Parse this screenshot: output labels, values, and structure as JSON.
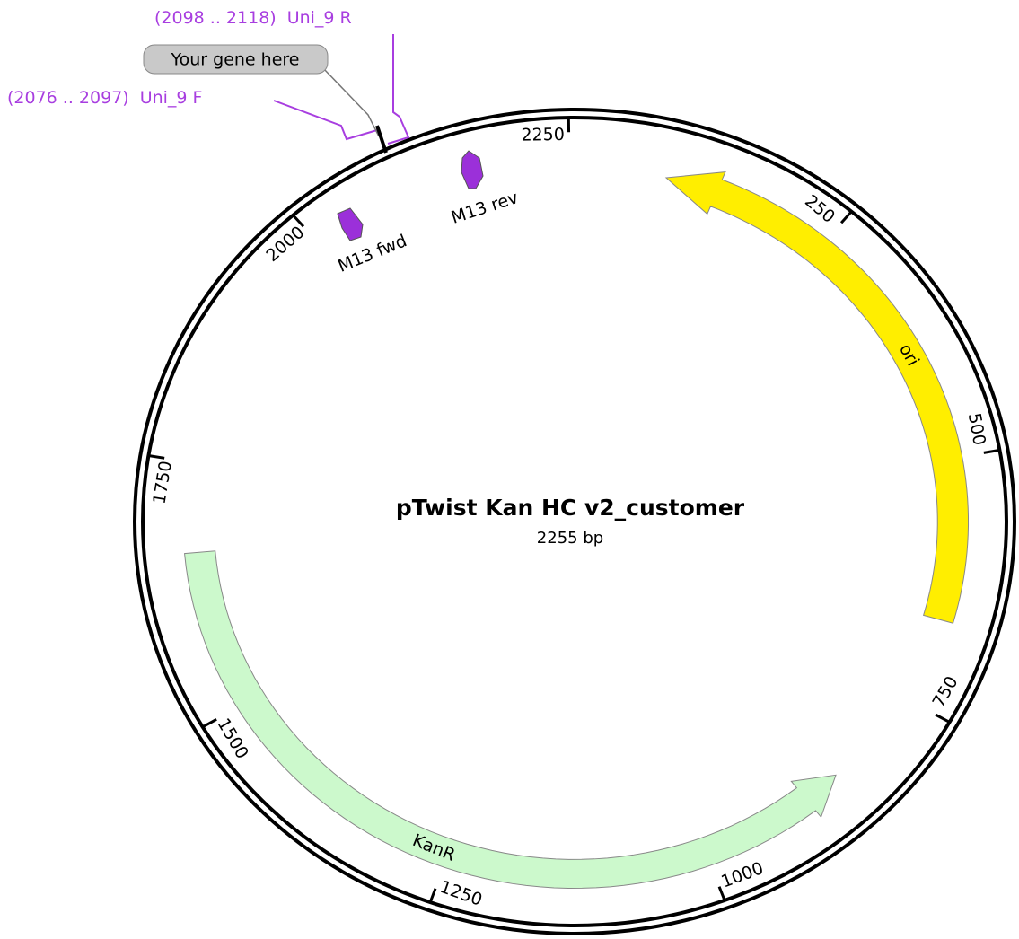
{
  "title": "pTwist Kan HC v2_customer",
  "length": {
    "value": 2255,
    "label": "2255 bp"
  },
  "ticks": [
    250,
    500,
    750,
    1000,
    1250,
    1500,
    1750,
    2000,
    2250
  ],
  "features": [
    {
      "label": "ori"
    },
    {
      "label": "KanR"
    },
    {
      "label": "M13 fwd"
    },
    {
      "label": "M13 rev"
    }
  ],
  "primers": [
    {
      "range": "(2076 .. 2097)",
      "label": "Uni_9 F"
    },
    {
      "range": "(2098 .. 2118)",
      "label": "Uni_9 R"
    }
  ],
  "insert": "Your gene here"
}
